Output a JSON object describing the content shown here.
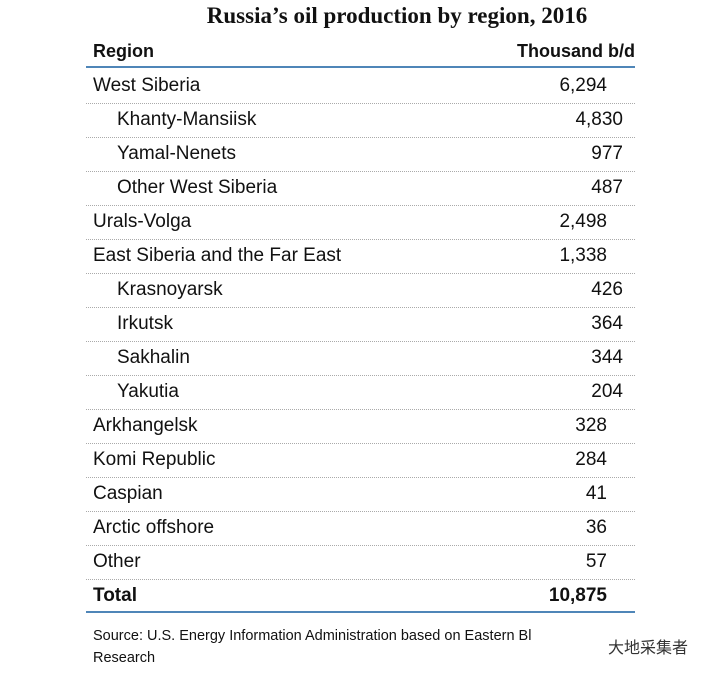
{
  "title": "Russia’s oil production by region, 2016",
  "table": {
    "header": [
      "Region",
      "Thousand b/d"
    ],
    "rows": [
      {
        "label": "West Siberia",
        "value": "6,294",
        "indent": false
      },
      {
        "label": "Khanty-Mansiisk",
        "value": "4,830",
        "indent": true
      },
      {
        "label": "Yamal-Nenets",
        "value": "977",
        "indent": true
      },
      {
        "label": "Other West Siberia",
        "value": "487",
        "indent": true
      },
      {
        "label": "Urals-Volga",
        "value": "2,498",
        "indent": false
      },
      {
        "label": "East Siberia and the Far East",
        "value": "1,338",
        "indent": false
      },
      {
        "label": "Krasnoyarsk",
        "value": "426",
        "indent": true
      },
      {
        "label": "Irkutsk",
        "value": "364",
        "indent": true
      },
      {
        "label": "Sakhalin",
        "value": "344",
        "indent": true
      },
      {
        "label": "Yakutia",
        "value": "204",
        "indent": true
      },
      {
        "label": "Arkhangelsk",
        "value": "328",
        "indent": false
      },
      {
        "label": "Komi Republic",
        "value": "284",
        "indent": false
      },
      {
        "label": "Caspian",
        "value": "41",
        "indent": false
      },
      {
        "label": "Arctic offshore",
        "value": "36",
        "indent": false
      },
      {
        "label": "Other",
        "value": "57",
        "indent": false
      }
    ],
    "total": {
      "label": "Total",
      "value": "10,875"
    }
  },
  "source": [
    "Source: U.S. Energy Information Administration based on Eastern Bl",
    "Research"
  ],
  "watermark": "大地采集者"
}
